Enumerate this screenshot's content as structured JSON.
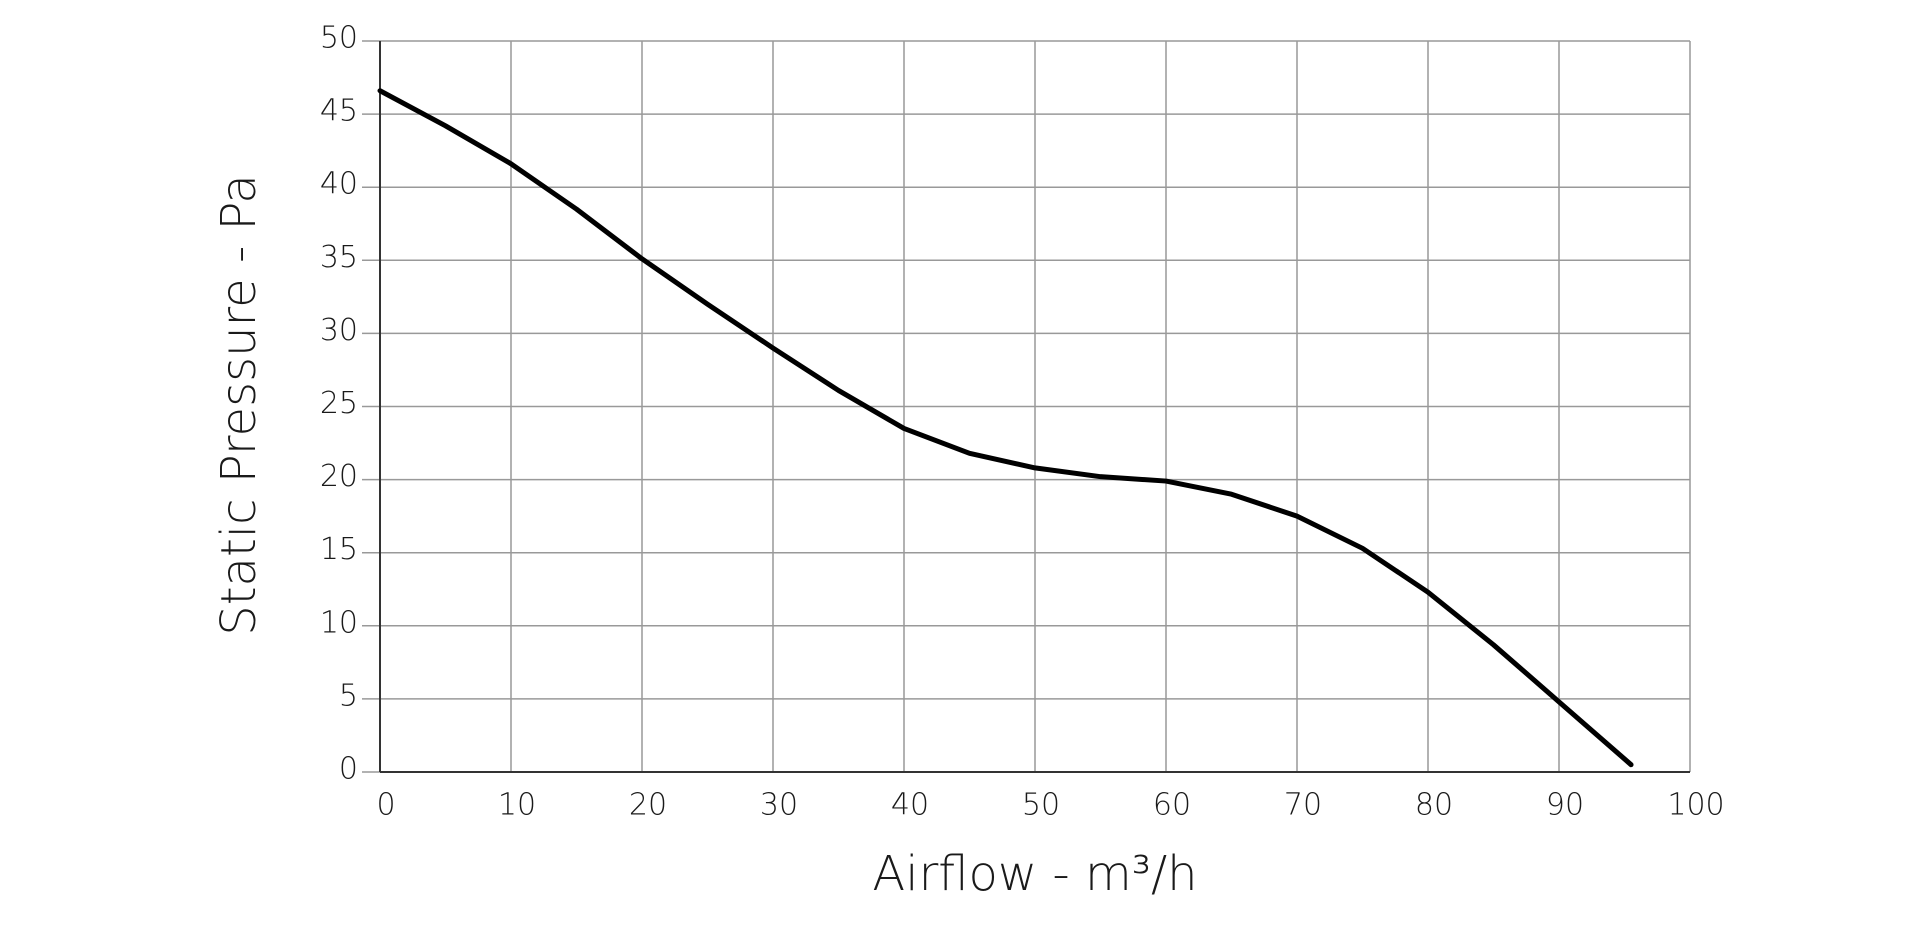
{
  "chart_data": {
    "type": "line",
    "xlabel": "Airflow - m³/h",
    "ylabel": "Static Pressure - Pa",
    "series": [
      {
        "x": [
          0,
          5,
          10,
          15,
          20,
          25,
          30,
          35,
          40,
          45,
          50,
          55,
          60,
          65,
          70,
          75,
          80,
          85,
          90,
          95.5
        ],
        "values": [
          46.6,
          44.2,
          41.6,
          38.5,
          35.1,
          32.0,
          29.0,
          26.1,
          23.5,
          21.8,
          20.8,
          20.2,
          19.9,
          19.0,
          17.5,
          15.3,
          12.3,
          8.7,
          4.8,
          0.5
        ],
        "color": "#000000"
      }
    ],
    "xlim": [
      0,
      100
    ],
    "xticks": [
      0,
      10,
      20,
      30,
      40,
      50,
      60,
      70,
      80,
      90,
      100
    ],
    "ylim": [
      0,
      50
    ],
    "yticks": [
      0,
      5,
      10,
      15,
      20,
      25,
      30,
      35,
      40,
      45,
      50
    ],
    "grid": true
  }
}
